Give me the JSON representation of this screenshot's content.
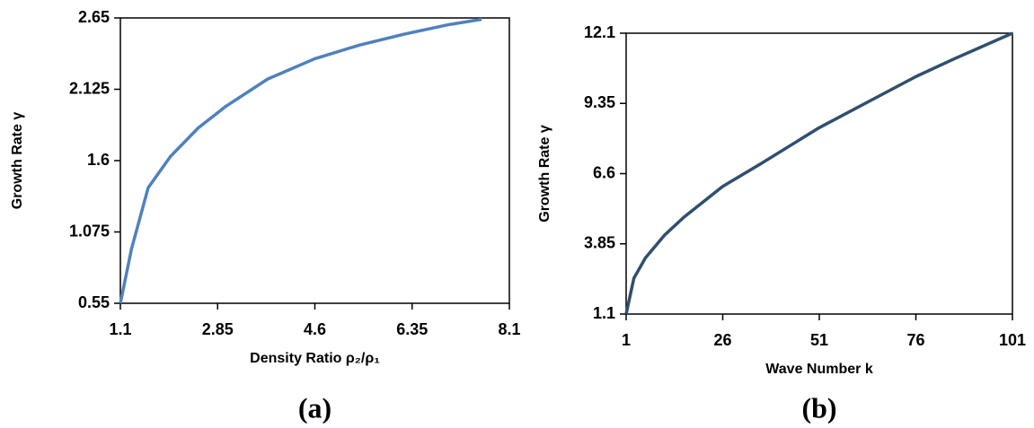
{
  "chart_data": [
    {
      "type": "line",
      "caption": "(a)",
      "xlabel": "Density Ratio ρ₂/ρ₁",
      "ylabel": "Growth Rate γ",
      "x": [
        1.1,
        1.3,
        1.6,
        2.0,
        2.5,
        3.0,
        3.75,
        4.6,
        5.4,
        6.2,
        7.0,
        7.6
      ],
      "series": [
        {
          "color": "#4f81bd",
          "values": [
            0.55,
            0.95,
            1.4,
            1.63,
            1.84,
            2.0,
            2.2,
            2.35,
            2.45,
            2.53,
            2.6,
            2.64
          ]
        }
      ],
      "xlim": [
        1.1,
        8.1
      ],
      "xticks": [
        1.1,
        2.85,
        4.6,
        6.35,
        8.1
      ],
      "ylim": [
        0.55,
        2.65
      ],
      "yticks": [
        0.55,
        1.075,
        1.6,
        2.125,
        2.65
      ]
    },
    {
      "type": "line",
      "caption": "(b)",
      "xlabel": "Wave Number k",
      "ylabel": "Growth Rate γ",
      "x": [
        1,
        3,
        6,
        11,
        16,
        26,
        36,
        51,
        66,
        76,
        86,
        101
      ],
      "series": [
        {
          "color": "#2f4f6f",
          "values": [
            1.1,
            2.5,
            3.3,
            4.2,
            4.9,
            6.1,
            7.0,
            8.4,
            9.6,
            10.4,
            11.1,
            12.1
          ]
        }
      ],
      "xlim": [
        1,
        101
      ],
      "xticks": [
        1,
        26,
        51,
        76,
        101
      ],
      "ylim": [
        1.1,
        12.1
      ],
      "yticks": [
        1.1,
        3.85,
        6.6,
        9.35,
        12.1
      ]
    }
  ]
}
